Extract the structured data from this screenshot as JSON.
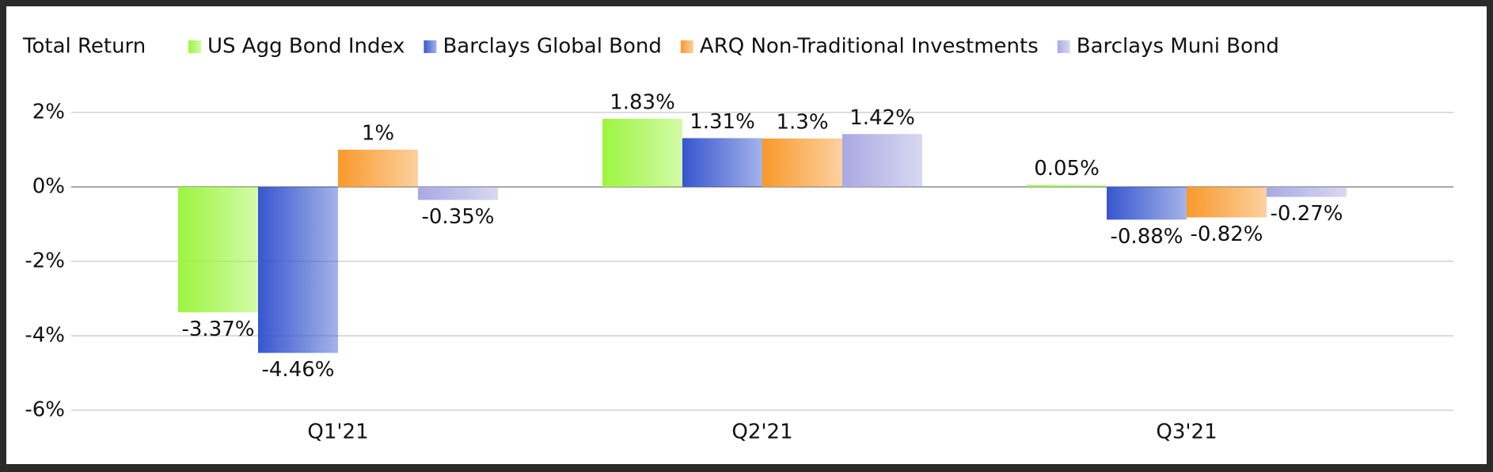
{
  "chart_data": {
    "type": "bar",
    "title": "Total Return",
    "categories": [
      "Q1'21",
      "Q2'21",
      "Q3'21"
    ],
    "series": [
      {
        "name": "US Agg Bond Index",
        "color": "#9df53f",
        "values": [
          -3.37,
          1.83,
          0.05
        ],
        "value_labels": [
          "-3.37%",
          "1.83%",
          "0.05%"
        ]
      },
      {
        "name": "Barclays Global Bond",
        "color": "#3656cf",
        "values": [
          -4.46,
          1.31,
          -0.88
        ],
        "value_labels": [
          "-4.46%",
          "1.31%",
          "-0.88%"
        ]
      },
      {
        "name": "ARQ Non-Traditional Investments",
        "color": "#f9992b",
        "values": [
          1,
          1.3,
          -0.82
        ],
        "value_labels": [
          "1%",
          "1.3%",
          "-0.82%"
        ]
      },
      {
        "name": "Barclays Muni Bond",
        "color": "#a9a9e3",
        "values": [
          -0.35,
          1.42,
          -0.27
        ],
        "value_labels": [
          "-0.35%",
          "1.42%",
          "-0.27%"
        ]
      }
    ],
    "ylim": [
      -6,
      2
    ],
    "yticks": [
      {
        "value": -6,
        "label": "-6%"
      },
      {
        "value": -4,
        "label": "-4%"
      },
      {
        "value": -2,
        "label": "-2%"
      },
      {
        "value": 0,
        "label": "0%"
      },
      {
        "value": 2,
        "label": "2%"
      }
    ],
    "grid": true
  }
}
